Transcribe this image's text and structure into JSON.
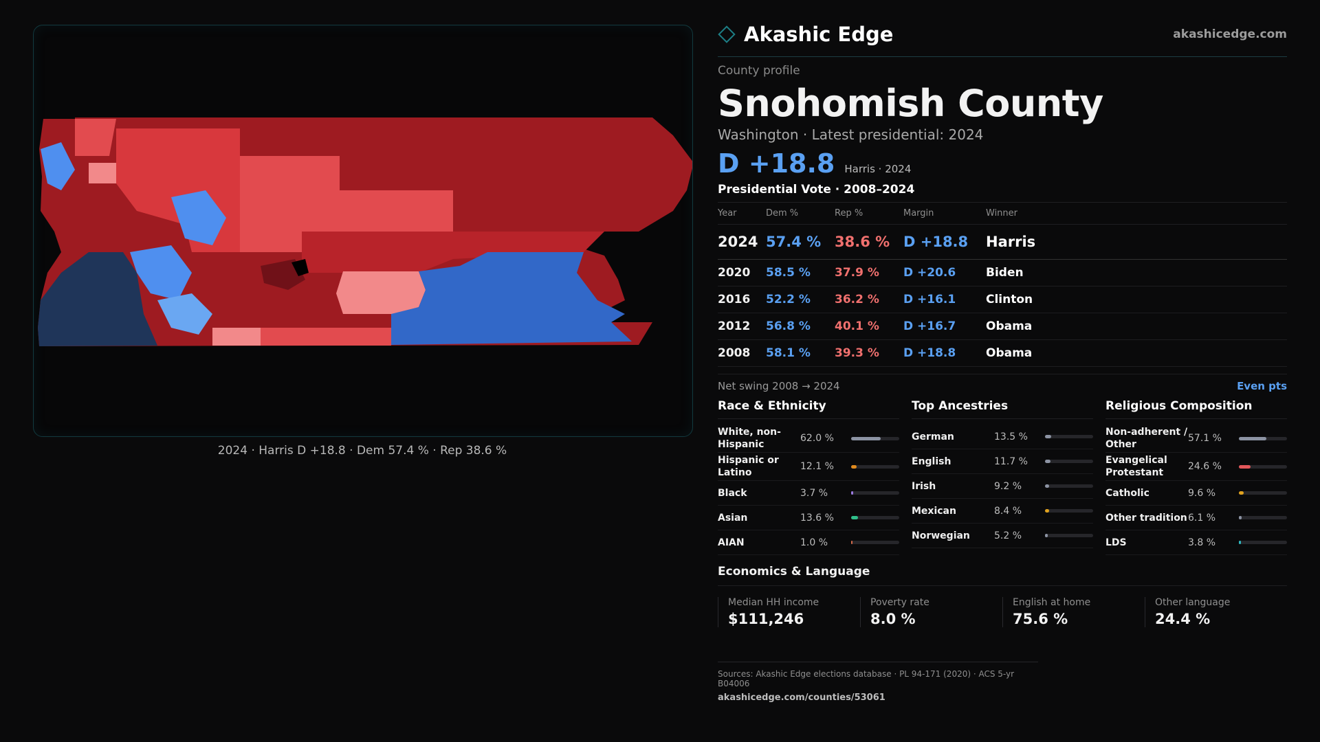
{
  "map": {
    "caption": "2024 · Harris D +18.8 · Dem 57.4 % · Rep 38.6 %",
    "colors": {
      "dark_red": "#9e1b21",
      "red": "#b8232a",
      "light_red": "#e24b4f",
      "pink": "#f2898a",
      "blue": "#3268c8",
      "light_blue": "#4f8fef",
      "navy": "#1f3559"
    }
  },
  "header": {
    "brand": "Akashic Edge",
    "site": "akashicedge.com",
    "accent": "#1d7e85"
  },
  "profile": {
    "kicker": "County profile",
    "county": "Snohomish County",
    "subline": "Washington · Latest presidential: 2024",
    "margin": "D +18.8",
    "margin_note": "Harris · 2024"
  },
  "votes": {
    "title": "Presidential Vote · 2008–2024",
    "columns": [
      "Year",
      "Dem %",
      "Rep %",
      "Margin",
      "Winner"
    ],
    "rows": [
      {
        "year": "2024",
        "dem": "57.4 %",
        "rep": "38.6 %",
        "margin": "D +18.8",
        "winner": "Harris"
      },
      {
        "year": "2020",
        "dem": "58.5 %",
        "rep": "37.9 %",
        "margin": "D +20.6",
        "winner": "Biden"
      },
      {
        "year": "2016",
        "dem": "52.2 %",
        "rep": "36.2 %",
        "margin": "D +16.1",
        "winner": "Clinton"
      },
      {
        "year": "2012",
        "dem": "56.8 %",
        "rep": "40.1 %",
        "margin": "D +16.7",
        "winner": "Obama"
      },
      {
        "year": "2008",
        "dem": "58.1 %",
        "rep": "39.3 %",
        "margin": "D +18.8",
        "winner": "Obama"
      }
    ]
  },
  "swing": {
    "label": "Net swing 2008 → 2024",
    "value": "Even pts"
  },
  "race": {
    "title": "Race & Ethnicity",
    "items": [
      {
        "label": "White, non-Hispanic",
        "value": "62.0 %",
        "pct": 62.0,
        "color": "#8c93a3"
      },
      {
        "label": "Hispanic or Latino",
        "value": "12.1 %",
        "pct": 12.1,
        "color": "#e08a1e"
      },
      {
        "label": "Black",
        "value": "3.7 %",
        "pct": 3.7,
        "color": "#9b7be0"
      },
      {
        "label": "Asian",
        "value": "13.6 %",
        "pct": 13.6,
        "color": "#2fbf8a"
      },
      {
        "label": "AIAN",
        "value": "1.0 %",
        "pct": 1.0,
        "color": "#d4694a"
      }
    ]
  },
  "ancestry": {
    "title": "Top Ancestries",
    "items": [
      {
        "label": "German",
        "value": "13.5 %",
        "pct": 13.5,
        "color": "#8c93a3"
      },
      {
        "label": "English",
        "value": "11.7 %",
        "pct": 11.7,
        "color": "#8c93a3"
      },
      {
        "label": "Irish",
        "value": "9.2 %",
        "pct": 9.2,
        "color": "#8c93a3"
      },
      {
        "label": "Mexican",
        "value": "8.4 %",
        "pct": 8.4,
        "color": "#e0a21e"
      },
      {
        "label": "Norwegian",
        "value": "5.2 %",
        "pct": 5.2,
        "color": "#8c93a3"
      }
    ]
  },
  "religion": {
    "title": "Religious Composition",
    "items": [
      {
        "label": "Non-adherent / Other",
        "value": "57.1 %",
        "pct": 57.1,
        "color": "#8c93a3"
      },
      {
        "label": "Evangelical Protestant",
        "value": "24.6 %",
        "pct": 24.6,
        "color": "#e2575a"
      },
      {
        "label": "Catholic",
        "value": "9.6 %",
        "pct": 9.6,
        "color": "#e0a21e"
      },
      {
        "label": "Other tradition",
        "value": "6.1 %",
        "pct": 6.1,
        "color": "#8c93a3"
      },
      {
        "label": "LDS",
        "value": "3.8 %",
        "pct": 3.8,
        "color": "#2fb7c0"
      }
    ]
  },
  "economics": {
    "title": "Economics & Language",
    "cells": [
      {
        "label": "Median HH income",
        "value": "$111,246"
      },
      {
        "label": "Poverty rate",
        "value": "8.0 %"
      },
      {
        "label": "English at home",
        "value": "75.6 %"
      },
      {
        "label": "Other language",
        "value": "24.4 %"
      }
    ]
  },
  "sources": {
    "line1": "Sources: Akashic Edge elections database · PL 94-171 (2020) · ACS 5-yr B04006",
    "line2": "akashicedge.com/counties/53061"
  }
}
